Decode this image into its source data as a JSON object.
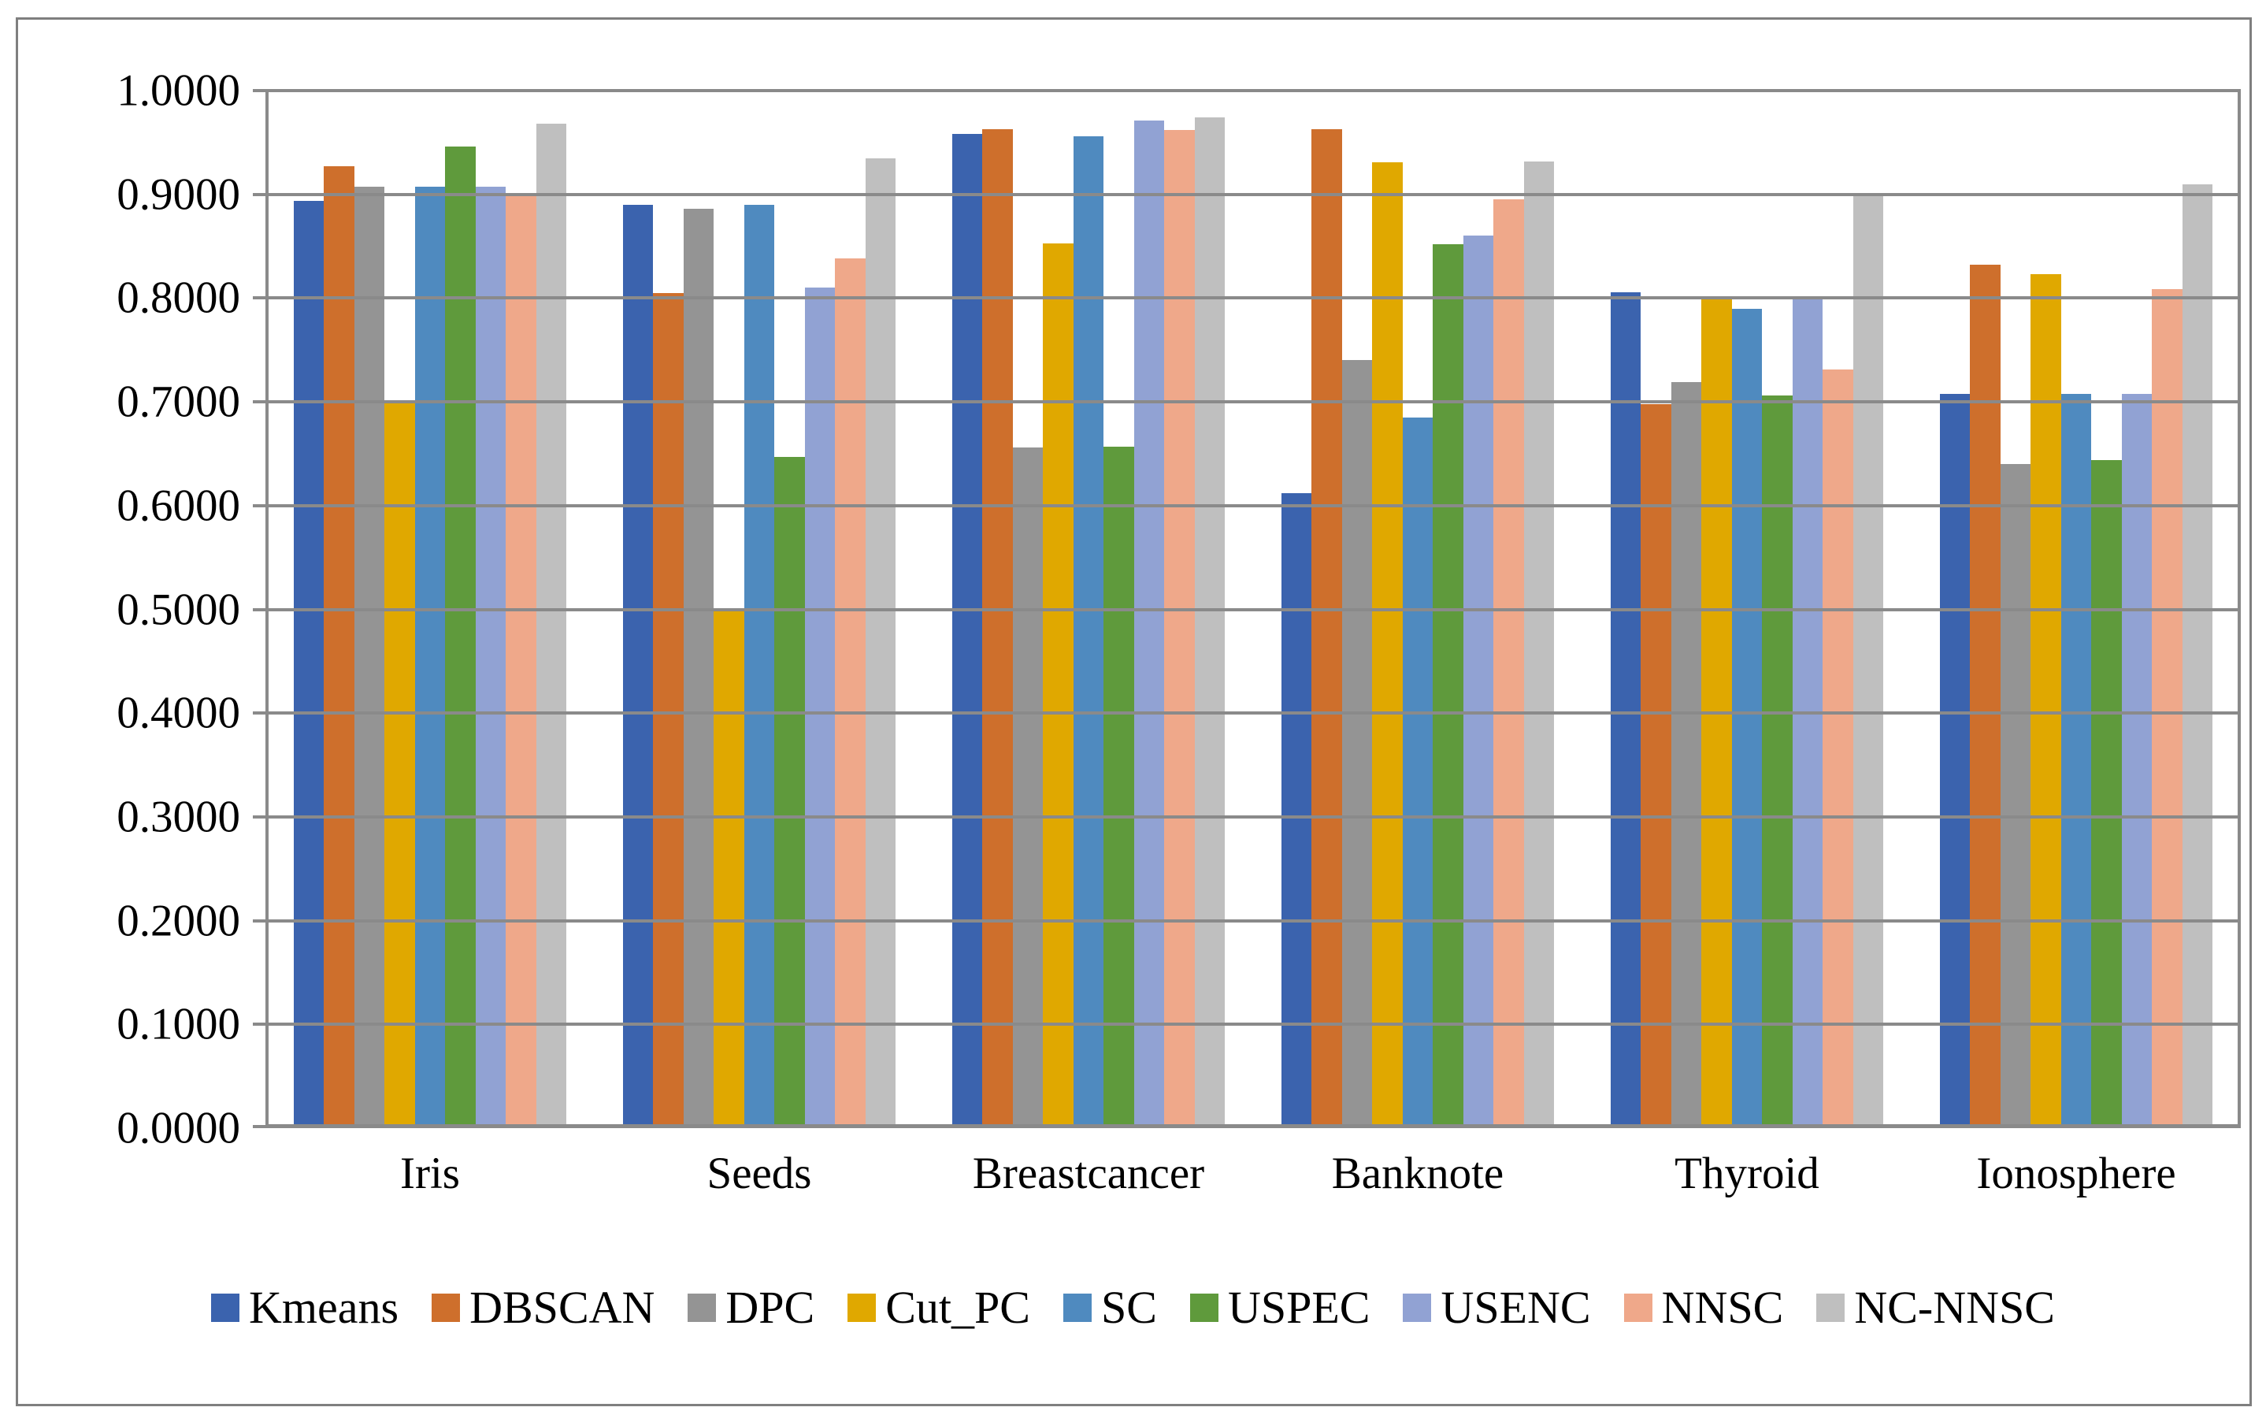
{
  "figure": {
    "background": "#ffffff",
    "border_color": "#7f7f7f",
    "grid_color": "#8a8a8a",
    "text_color": "#000000"
  },
  "chart_data": {
    "type": "bar",
    "title": "",
    "xlabel": "",
    "ylabel": "",
    "ylim": [
      0.0,
      1.0
    ],
    "grid": true,
    "legend_position": "bottom",
    "y_ticks": [
      "0.0000",
      "0.1000",
      "0.2000",
      "0.3000",
      "0.4000",
      "0.5000",
      "0.6000",
      "0.7000",
      "0.8000",
      "0.9000",
      "1.0000"
    ],
    "categories": [
      "Iris",
      "Seeds",
      "Breastcancer",
      "Banknote",
      "Thyroid",
      "Ionosphere"
    ],
    "series": [
      {
        "name": "Kmeans",
        "color": "#3B63AE",
        "values": [
          0.894,
          0.89,
          0.958,
          0.612,
          0.806,
          0.708
        ]
      },
      {
        "name": "DBSCAN",
        "color": "#CE6F2C",
        "values": [
          0.927,
          0.805,
          0.963,
          0.963,
          0.698,
          0.832
        ]
      },
      {
        "name": "DPC",
        "color": "#949494",
        "values": [
          0.907,
          0.886,
          0.656,
          0.74,
          0.719,
          0.64
        ]
      },
      {
        "name": "Cut_PC",
        "color": "#E0A800",
        "values": [
          0.7,
          0.5,
          0.853,
          0.931,
          0.801,
          0.823
        ]
      },
      {
        "name": "SC",
        "color": "#4F8ABF",
        "values": [
          0.907,
          0.89,
          0.956,
          0.685,
          0.79,
          0.708
        ]
      },
      {
        "name": "USPEC",
        "color": "#5F9A3C",
        "values": [
          0.946,
          0.647,
          0.657,
          0.852,
          0.706,
          0.644
        ]
      },
      {
        "name": "USENC",
        "color": "#91A2D3",
        "values": [
          0.907,
          0.81,
          0.971,
          0.86,
          0.8,
          0.708
        ]
      },
      {
        "name": "NNSC",
        "color": "#EFA88A",
        "values": [
          0.9,
          0.838,
          0.962,
          0.895,
          0.731,
          0.809
        ]
      },
      {
        "name": "NC-NNSC",
        "color": "#BFBFBF",
        "values": [
          0.968,
          0.935,
          0.974,
          0.932,
          0.901,
          0.91
        ]
      }
    ]
  }
}
